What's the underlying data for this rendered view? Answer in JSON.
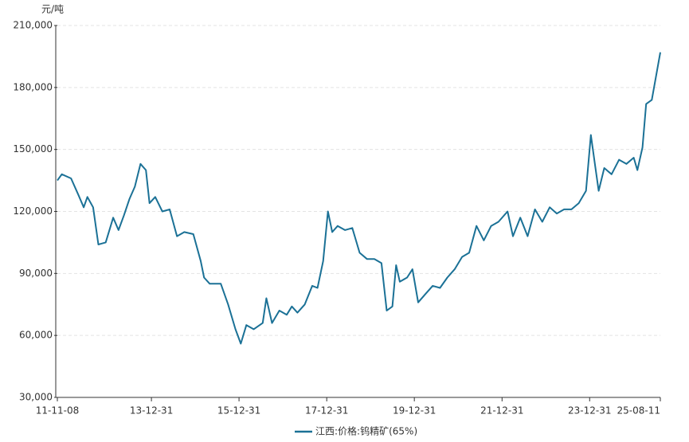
{
  "chart_data": {
    "type": "line",
    "y_unit": "元/吨",
    "x": [
      "11-11-08",
      "11-12-15",
      "12-03-01",
      "12-05-01",
      "12-06-15",
      "12-07-15",
      "12-09-01",
      "12-10-15",
      "12-12-15",
      "13-02-15",
      "13-04-01",
      "13-05-15",
      "13-07-01",
      "13-08-15",
      "13-10-01",
      "13-11-15",
      "13-12-15",
      "14-02-01",
      "14-04-01",
      "14-06-01",
      "14-08-01",
      "14-10-01",
      "14-12-15",
      "15-02-15",
      "15-03-15",
      "15-05-01",
      "15-08-01",
      "15-10-01",
      "15-12-01",
      "16-01-15",
      "16-03-01",
      "16-05-01",
      "16-07-15",
      "16-08-15",
      "16-10-01",
      "16-12-01",
      "17-02-01",
      "17-03-15",
      "17-05-01",
      "17-07-01",
      "17-09-01",
      "17-10-15",
      "17-12-01",
      "18-01-10",
      "18-02-15",
      "18-04-01",
      "18-06-01",
      "18-08-01",
      "18-10-01",
      "18-12-01",
      "19-02-01",
      "19-04-01",
      "19-05-15",
      "19-07-01",
      "19-08-01",
      "19-09-01",
      "19-11-01",
      "19-12-15",
      "20-02-01",
      "20-04-01",
      "20-06-01",
      "20-08-01",
      "20-10-01",
      "20-12-01",
      "21-02-01",
      "21-04-01",
      "21-06-01",
      "21-08-01",
      "21-10-01",
      "21-12-01",
      "22-02-15",
      "22-04-01",
      "22-06-01",
      "22-08-01",
      "22-10-01",
      "22-12-01",
      "23-02-01",
      "23-04-01",
      "23-06-01",
      "23-08-01",
      "23-10-01",
      "23-12-01",
      "24-01-10",
      "24-02-15",
      "24-03-15",
      "24-05-01",
      "24-07-01",
      "24-09-01",
      "24-11-01",
      "25-01-01",
      "25-02-01",
      "25-03-15",
      "25-04-15",
      "25-06-01",
      "25-08-11"
    ],
    "series": [
      {
        "name": "江西:价格:钨精矿(65%)",
        "color": "#1b7196",
        "values": [
          135000,
          138000,
          136000,
          128000,
          122000,
          127000,
          122000,
          104000,
          105000,
          117000,
          111000,
          118000,
          126000,
          132000,
          143000,
          140000,
          124000,
          127000,
          120000,
          121000,
          108000,
          110000,
          109000,
          96000,
          88000,
          85000,
          85000,
          75000,
          63000,
          56000,
          65000,
          63000,
          66000,
          78000,
          66000,
          72000,
          70000,
          74000,
          71000,
          75000,
          84000,
          83000,
          96000,
          120000,
          110000,
          113000,
          111000,
          112000,
          100000,
          97000,
          97000,
          95000,
          72000,
          74000,
          94000,
          86000,
          88000,
          92000,
          76000,
          80000,
          84000,
          83000,
          88000,
          92000,
          98000,
          100000,
          113000,
          106000,
          113000,
          115000,
          120000,
          108000,
          117000,
          108000,
          121000,
          115000,
          122000,
          119000,
          121000,
          121000,
          124000,
          130000,
          157000,
          142000,
          130000,
          141000,
          138000,
          145000,
          143000,
          146000,
          140000,
          151000,
          172000,
          174000,
          197000
        ]
      }
    ],
    "xlim": [
      "11-11-08",
      "25-08-11"
    ],
    "xticks": [
      "11-11-08",
      "13-12-31",
      "15-12-31",
      "17-12-31",
      "19-12-31",
      "21-12-31",
      "23-12-31",
      "25-08-11"
    ],
    "ylim": [
      30000,
      210000
    ],
    "yticks": [
      {
        "value": 30000,
        "label": "30,000"
      },
      {
        "value": 60000,
        "label": "60,000"
      },
      {
        "value": 90000,
        "label": "90,000"
      },
      {
        "value": 120000,
        "label": "120,000"
      },
      {
        "value": 150000,
        "label": "150,000"
      },
      {
        "value": 180000,
        "label": "180,000"
      },
      {
        "value": 210000,
        "label": "210,000"
      }
    ],
    "grid": true,
    "legend": "bottom"
  }
}
